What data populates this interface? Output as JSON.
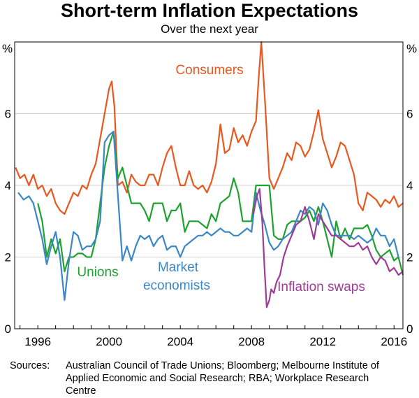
{
  "chart_data": {
    "type": "line",
    "title": "Short-term Inflation Expectations",
    "subtitle": "Over the next year",
    "ylabel_left": "%",
    "ylabel_right": "%",
    "ylim": [
      0,
      8
    ],
    "xlim": [
      1994.7,
      2016.5
    ],
    "y_ticks": [
      0,
      2,
      4,
      6
    ],
    "x_ticks": [
      1996,
      2000,
      2004,
      2008,
      2012,
      2016
    ],
    "x_tick_labels": [
      "1996",
      "2000",
      "2004",
      "2008",
      "2012",
      "2016"
    ],
    "series": [
      {
        "name": "Consumers",
        "color": "#e8581f",
        "points": [
          [
            1994.75,
            4.5
          ],
          [
            1995.0,
            4.2
          ],
          [
            1995.25,
            4.3
          ],
          [
            1995.5,
            4.0
          ],
          [
            1995.75,
            4.3
          ],
          [
            1996.0,
            3.9
          ],
          [
            1996.25,
            4.0
          ],
          [
            1996.5,
            3.7
          ],
          [
            1996.75,
            3.9
          ],
          [
            1997.0,
            3.5
          ],
          [
            1997.25,
            3.3
          ],
          [
            1997.5,
            3.2
          ],
          [
            1997.75,
            3.5
          ],
          [
            1998.0,
            3.8
          ],
          [
            1998.25,
            3.7
          ],
          [
            1998.5,
            4.0
          ],
          [
            1998.75,
            3.9
          ],
          [
            1999.0,
            4.3
          ],
          [
            1999.25,
            4.6
          ],
          [
            1999.5,
            5.3
          ],
          [
            1999.75,
            6.0
          ],
          [
            2000.0,
            6.7
          ],
          [
            2000.15,
            6.9
          ],
          [
            2000.3,
            6.2
          ],
          [
            2000.5,
            4.0
          ],
          [
            2000.75,
            4.1
          ],
          [
            2001.0,
            3.8
          ],
          [
            2001.25,
            4.3
          ],
          [
            2001.5,
            4.1
          ],
          [
            2001.75,
            4.0
          ],
          [
            2002.0,
            4.0
          ],
          [
            2002.25,
            4.3
          ],
          [
            2002.5,
            4.3
          ],
          [
            2002.75,
            4.0
          ],
          [
            2003.0,
            4.5
          ],
          [
            2003.25,
            4.9
          ],
          [
            2003.5,
            5.1
          ],
          [
            2003.75,
            4.5
          ],
          [
            2004.0,
            4.0
          ],
          [
            2004.25,
            4.0
          ],
          [
            2004.5,
            4.4
          ],
          [
            2004.75,
            4.0
          ],
          [
            2005.0,
            3.9
          ],
          [
            2005.25,
            4.0
          ],
          [
            2005.5,
            3.8
          ],
          [
            2005.75,
            4.1
          ],
          [
            2006.0,
            4.6
          ],
          [
            2006.25,
            5.7
          ],
          [
            2006.5,
            4.9
          ],
          [
            2006.75,
            5.0
          ],
          [
            2007.0,
            5.6
          ],
          [
            2007.25,
            5.2
          ],
          [
            2007.5,
            5.4
          ],
          [
            2007.75,
            5.1
          ],
          [
            2008.0,
            5.5
          ],
          [
            2008.25,
            5.8
          ],
          [
            2008.4,
            7.0
          ],
          [
            2008.55,
            8.0
          ],
          [
            2008.75,
            6.4
          ],
          [
            2009.0,
            4.2
          ],
          [
            2009.25,
            3.9
          ],
          [
            2009.5,
            4.2
          ],
          [
            2009.75,
            4.5
          ],
          [
            2010.0,
            4.9
          ],
          [
            2010.25,
            4.7
          ],
          [
            2010.5,
            5.2
          ],
          [
            2010.75,
            5.1
          ],
          [
            2011.0,
            4.8
          ],
          [
            2011.25,
            5.0
          ],
          [
            2011.5,
            5.5
          ],
          [
            2011.75,
            6.1
          ],
          [
            2012.0,
            5.3
          ],
          [
            2012.25,
            4.9
          ],
          [
            2012.5,
            4.5
          ],
          [
            2012.75,
            4.8
          ],
          [
            2013.0,
            5.2
          ],
          [
            2013.25,
            5.1
          ],
          [
            2013.5,
            4.7
          ],
          [
            2013.75,
            4.3
          ],
          [
            2014.0,
            3.5
          ],
          [
            2014.25,
            3.3
          ],
          [
            2014.5,
            3.8
          ],
          [
            2014.75,
            3.7
          ],
          [
            2015.0,
            3.6
          ],
          [
            2015.25,
            3.4
          ],
          [
            2015.5,
            3.6
          ],
          [
            2015.75,
            3.5
          ],
          [
            2016.0,
            3.7
          ],
          [
            2016.25,
            3.4
          ],
          [
            2016.5,
            3.5
          ]
        ]
      },
      {
        "name": "Unions",
        "color": "#1ca32e",
        "points": [
          [
            1996.0,
            3.5
          ],
          [
            1996.25,
            3.0
          ],
          [
            1996.5,
            2.0
          ],
          [
            1996.75,
            2.5
          ],
          [
            1997.0,
            2.1
          ],
          [
            1997.25,
            2.5
          ],
          [
            1997.5,
            1.6
          ],
          [
            1997.75,
            2.0
          ],
          [
            1998.0,
            2.0
          ],
          [
            1998.25,
            2.1
          ],
          [
            1998.5,
            2.1
          ],
          [
            1998.75,
            2.0
          ],
          [
            1999.0,
            2.0
          ],
          [
            1999.25,
            2.5
          ],
          [
            1999.5,
            3.5
          ],
          [
            1999.75,
            4.5
          ],
          [
            2000.0,
            5.1
          ],
          [
            2000.25,
            5.5
          ],
          [
            2000.5,
            4.2
          ],
          [
            2000.75,
            4.5
          ],
          [
            2001.0,
            4.0
          ],
          [
            2001.25,
            3.5
          ],
          [
            2001.5,
            3.5
          ],
          [
            2001.75,
            3.5
          ],
          [
            2002.0,
            3.3
          ],
          [
            2002.25,
            3.0
          ],
          [
            2002.5,
            3.5
          ],
          [
            2002.75,
            3.5
          ],
          [
            2003.0,
            3.5
          ],
          [
            2003.25,
            3.0
          ],
          [
            2003.5,
            3.3
          ],
          [
            2003.75,
            3.3
          ],
          [
            2004.0,
            3.5
          ],
          [
            2004.25,
            2.7
          ],
          [
            2004.5,
            3.0
          ],
          [
            2004.75,
            3.0
          ],
          [
            2005.0,
            3.0
          ],
          [
            2005.25,
            2.9
          ],
          [
            2005.5,
            2.8
          ],
          [
            2005.75,
            3.2
          ],
          [
            2006.0,
            3.0
          ],
          [
            2006.25,
            3.5
          ],
          [
            2006.5,
            3.6
          ],
          [
            2006.75,
            3.7
          ],
          [
            2007.0,
            4.2
          ],
          [
            2007.25,
            3.8
          ],
          [
            2007.5,
            3.0
          ],
          [
            2007.75,
            3.0
          ],
          [
            2008.0,
            3.0
          ],
          [
            2008.25,
            4.0
          ],
          [
            2008.5,
            4.0
          ],
          [
            2008.75,
            4.0
          ],
          [
            2009.0,
            4.0
          ],
          [
            2009.25,
            2.6
          ],
          [
            2009.5,
            2.5
          ],
          [
            2009.75,
            2.5
          ],
          [
            2010.0,
            2.9
          ],
          [
            2010.25,
            3.0
          ],
          [
            2010.5,
            3.0
          ],
          [
            2010.75,
            3.0
          ],
          [
            2011.0,
            3.1
          ],
          [
            2011.25,
            3.3
          ],
          [
            2011.5,
            3.0
          ],
          [
            2011.75,
            3.4
          ],
          [
            2012.0,
            3.0
          ],
          [
            2012.25,
            2.5
          ],
          [
            2012.5,
            2.0
          ],
          [
            2012.75,
            3.0
          ],
          [
            2013.0,
            2.5
          ],
          [
            2013.25,
            2.8
          ],
          [
            2013.5,
            2.5
          ],
          [
            2013.75,
            2.8
          ],
          [
            2014.0,
            2.8
          ],
          [
            2014.25,
            2.8
          ],
          [
            2014.5,
            2.9
          ],
          [
            2014.75,
            2.6
          ],
          [
            2015.0,
            2.2
          ],
          [
            2015.25,
            2.0
          ],
          [
            2015.5,
            2.1
          ],
          [
            2015.75,
            2.2
          ],
          [
            2016.0,
            1.9
          ],
          [
            2016.25,
            2.0
          ],
          [
            2016.5,
            1.5
          ]
        ]
      },
      {
        "name": "Market economists",
        "color": "#3b86c6",
        "points": [
          [
            1994.9,
            3.8
          ],
          [
            1995.2,
            3.6
          ],
          [
            1995.5,
            3.7
          ],
          [
            1995.75,
            3.5
          ],
          [
            1996.0,
            3.0
          ],
          [
            1996.25,
            2.5
          ],
          [
            1996.5,
            1.8
          ],
          [
            1996.75,
            2.3
          ],
          [
            1997.0,
            2.7
          ],
          [
            1997.25,
            2.0
          ],
          [
            1997.5,
            0.8
          ],
          [
            1997.75,
            1.9
          ],
          [
            1998.0,
            2.7
          ],
          [
            1998.25,
            2.6
          ],
          [
            1998.5,
            2.2
          ],
          [
            1998.75,
            2.3
          ],
          [
            1999.0,
            2.3
          ],
          [
            1999.25,
            2.5
          ],
          [
            1999.5,
            3.0
          ],
          [
            1999.75,
            5.2
          ],
          [
            2000.0,
            5.4
          ],
          [
            2000.25,
            5.5
          ],
          [
            2000.5,
            3.7
          ],
          [
            2000.75,
            1.9
          ],
          [
            2001.0,
            2.3
          ],
          [
            2001.25,
            1.9
          ],
          [
            2001.5,
            2.3
          ],
          [
            2001.75,
            2.6
          ],
          [
            2002.0,
            2.5
          ],
          [
            2002.25,
            2.6
          ],
          [
            2002.5,
            2.3
          ],
          [
            2002.75,
            2.5
          ],
          [
            2003.0,
            2.6
          ],
          [
            2003.25,
            2.2
          ],
          [
            2003.5,
            2.3
          ],
          [
            2003.75,
            2.3
          ],
          [
            2004.0,
            2.0
          ],
          [
            2004.25,
            2.3
          ],
          [
            2004.5,
            2.4
          ],
          [
            2004.75,
            2.5
          ],
          [
            2005.0,
            2.6
          ],
          [
            2005.25,
            2.6
          ],
          [
            2005.5,
            2.7
          ],
          [
            2005.75,
            2.6
          ],
          [
            2006.0,
            2.7
          ],
          [
            2006.25,
            2.8
          ],
          [
            2006.5,
            2.7
          ],
          [
            2006.75,
            2.7
          ],
          [
            2007.0,
            2.6
          ],
          [
            2007.25,
            2.6
          ],
          [
            2007.5,
            2.7
          ],
          [
            2007.75,
            2.8
          ],
          [
            2008.0,
            2.7
          ],
          [
            2008.25,
            3.8
          ],
          [
            2008.5,
            3.3
          ],
          [
            2008.75,
            2.9
          ],
          [
            2009.0,
            2.4
          ],
          [
            2009.25,
            2.2
          ],
          [
            2009.5,
            2.3
          ],
          [
            2009.75,
            2.5
          ],
          [
            2010.0,
            2.6
          ],
          [
            2010.25,
            2.7
          ],
          [
            2010.5,
            3.0
          ],
          [
            2010.75,
            3.3
          ],
          [
            2011.0,
            3.2
          ],
          [
            2011.25,
            3.4
          ],
          [
            2011.5,
            3.3
          ],
          [
            2011.75,
            2.9
          ],
          [
            2012.0,
            3.5
          ],
          [
            2012.25,
            3.3
          ],
          [
            2012.5,
            2.9
          ],
          [
            2012.75,
            2.6
          ],
          [
            2013.0,
            2.6
          ],
          [
            2013.25,
            2.6
          ],
          [
            2013.5,
            2.6
          ],
          [
            2013.75,
            2.5
          ],
          [
            2014.0,
            2.6
          ],
          [
            2014.25,
            2.5
          ],
          [
            2014.5,
            2.4
          ],
          [
            2014.75,
            2.5
          ],
          [
            2015.0,
            2.8
          ],
          [
            2015.25,
            2.6
          ],
          [
            2015.5,
            2.6
          ],
          [
            2015.75,
            2.3
          ],
          [
            2016.0,
            2.5
          ],
          [
            2016.25,
            2.0
          ]
        ]
      },
      {
        "name": "Inflation swaps",
        "color": "#9e3c97",
        "points": [
          [
            2008.1,
            3.2
          ],
          [
            2008.3,
            3.7
          ],
          [
            2008.45,
            3.9
          ],
          [
            2008.6,
            3.0
          ],
          [
            2008.75,
            1.5
          ],
          [
            2008.85,
            0.6
          ],
          [
            2009.0,
            0.8
          ],
          [
            2009.1,
            1.1
          ],
          [
            2009.25,
            1.0
          ],
          [
            2009.4,
            1.3
          ],
          [
            2009.6,
            1.5
          ],
          [
            2009.8,
            2.0
          ],
          [
            2010.0,
            2.3
          ],
          [
            2010.25,
            2.6
          ],
          [
            2010.5,
            2.9
          ],
          [
            2010.75,
            3.0
          ],
          [
            2011.0,
            3.4
          ],
          [
            2011.25,
            3.0
          ],
          [
            2011.5,
            2.5
          ],
          [
            2011.75,
            3.2
          ],
          [
            2012.0,
            3.0
          ],
          [
            2012.25,
            2.8
          ],
          [
            2012.5,
            2.6
          ],
          [
            2012.75,
            2.6
          ],
          [
            2013.0,
            2.5
          ],
          [
            2013.25,
            2.4
          ],
          [
            2013.5,
            2.3
          ],
          [
            2013.75,
            2.3
          ],
          [
            2014.0,
            2.4
          ],
          [
            2014.25,
            2.2
          ],
          [
            2014.5,
            2.3
          ],
          [
            2014.75,
            2.0
          ],
          [
            2015.0,
            1.8
          ],
          [
            2015.25,
            2.0
          ],
          [
            2015.5,
            1.9
          ],
          [
            2015.75,
            1.6
          ],
          [
            2016.0,
            1.7
          ],
          [
            2016.25,
            1.5
          ],
          [
            2016.5,
            1.6
          ]
        ]
      }
    ],
    "annotations": [
      {
        "text": "Consumers",
        "series": "Consumers"
      },
      {
        "text": "Unions",
        "series": "Unions"
      },
      {
        "text": "Market",
        "series": "Market economists"
      },
      {
        "text": "economists",
        "series": "Market economists"
      },
      {
        "text": "Inflation swaps",
        "series": "Inflation swaps"
      }
    ],
    "grid": true
  },
  "sources_label": "Sources:",
  "sources_text": "Australian Council of Trade Unions; Bloomberg; Melbourne Institute of Applied Economic and Social Research; RBA; Workplace Research Centre"
}
